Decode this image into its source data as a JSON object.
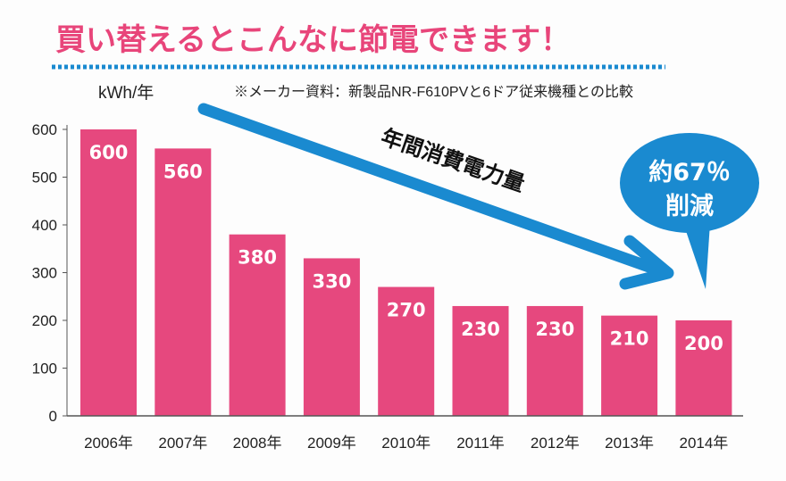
{
  "chart_data": {
    "type": "bar",
    "title": "買い替えるとこんなに節電できます！",
    "note": "※メーカー資料：新製品NR-F610PVと6ドア従来機種との比較",
    "ylabel": "kWh/年",
    "xlabel": "",
    "ylim": [
      0,
      600
    ],
    "yticks": [
      0,
      100,
      200,
      300,
      400,
      500,
      600
    ],
    "categories": [
      "2006年",
      "2007年",
      "2008年",
      "2009年",
      "2010年",
      "2011年",
      "2012年",
      "2013年",
      "2014年"
    ],
    "values": [
      600,
      560,
      380,
      330,
      270,
      230,
      230,
      210,
      200
    ],
    "grid": false,
    "arrow_label": "年間消費電力量",
    "callout": [
      "約67％",
      "削減"
    ],
    "colors": {
      "bar": "#e6487e",
      "accent": "#1a8ad0",
      "title": "#e8457a"
    }
  }
}
